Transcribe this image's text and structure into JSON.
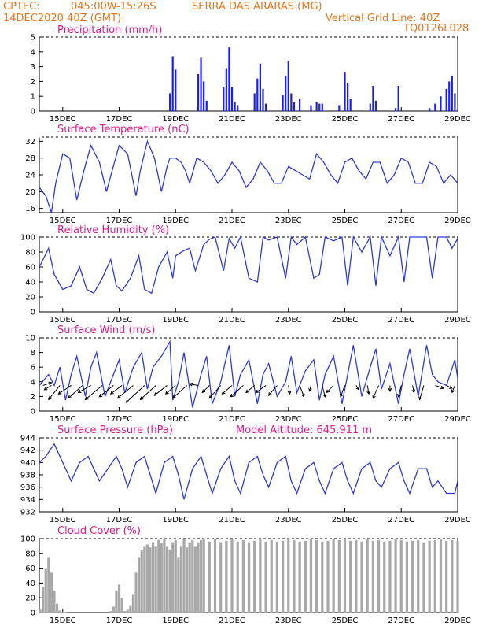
{
  "header": {
    "line1_left": "CPTEC:",
    "line1_coords": "045:00W-15:26S",
    "line1_station": "SERRA DAS ARARAS (MG)",
    "line2_left": "14DEC2020 40Z (GMT)",
    "line2_right": "Vertical Grid Line: 40Z",
    "line3_right": "TQ0126L028"
  },
  "colors": {
    "header": "#e8751a",
    "title": "#e0198b",
    "line": "#2b3ae0",
    "bar": "#1a1ff0",
    "cloud": "#a8a8a8",
    "arrow": "#000000"
  },
  "x_axis": {
    "ticks": [
      "15DEC",
      "17DEC",
      "19DEC",
      "21DEC",
      "23DEC",
      "25DEC",
      "27DEC",
      "29DEC"
    ],
    "range_days": [
      14.17,
      29.0
    ]
  },
  "chart_data": [
    {
      "type": "bar",
      "id": "precip",
      "title": "Precipitation (mm/h)",
      "ylim": [
        0,
        5
      ],
      "yticks": [
        "0",
        "1",
        "2",
        "3",
        "4",
        "5"
      ],
      "x": [
        18.8,
        18.9,
        19.0,
        19.8,
        19.9,
        20.0,
        20.1,
        20.7,
        20.8,
        20.9,
        21.0,
        21.1,
        21.2,
        21.8,
        21.9,
        22.0,
        22.1,
        22.2,
        22.8,
        22.9,
        23.0,
        23.1,
        23.2,
        23.4,
        23.8,
        24.0,
        24.1,
        24.2,
        24.8,
        25.0,
        25.1,
        25.2,
        25.9,
        26.0,
        26.1,
        26.8,
        26.9,
        28.0,
        28.2,
        28.4,
        28.6,
        28.7,
        28.8,
        28.9
      ],
      "values": [
        1.2,
        3.7,
        2.8,
        2.5,
        3.6,
        2.0,
        0.7,
        1.6,
        2.9,
        4.3,
        1.6,
        0.6,
        0.4,
        1.2,
        2.2,
        3.2,
        1.5,
        0.5,
        1.1,
        2.4,
        3.4,
        1.2,
        0.6,
        0.8,
        0.4,
        0.6,
        0.5,
        0.5,
        0.4,
        2.6,
        1.9,
        0.8,
        0.5,
        1.7,
        0.7,
        0.2,
        1.7,
        0.2,
        0.5,
        1.0,
        1.5,
        2.0,
        2.4,
        1.2
      ]
    },
    {
      "type": "line",
      "id": "temp",
      "title": "Surface Temperature (nC)",
      "ylim": [
        15,
        33
      ],
      "yticks": [
        "16",
        "20",
        "24",
        "28",
        "32"
      ],
      "x": [
        14.17,
        14.4,
        14.6,
        14.75,
        15.0,
        15.25,
        15.5,
        15.75,
        16.0,
        16.3,
        16.55,
        16.75,
        17.0,
        17.3,
        17.6,
        17.75,
        18.0,
        18.25,
        18.5,
        18.7,
        18.8,
        19.0,
        19.2,
        19.35,
        19.5,
        19.75,
        20.0,
        20.25,
        20.5,
        20.75,
        21.0,
        21.25,
        21.5,
        21.75,
        22.0,
        22.25,
        22.5,
        22.75,
        23.0,
        23.25,
        23.5,
        23.75,
        24.0,
        24.25,
        24.5,
        24.75,
        25.0,
        25.25,
        25.5,
        25.75,
        26.0,
        26.25,
        26.5,
        26.75,
        27.0,
        27.25,
        27.5,
        27.75,
        28.0,
        28.25,
        28.5,
        28.75,
        29.0
      ],
      "values": [
        21,
        19,
        15,
        22,
        29,
        28,
        18,
        25,
        31,
        27,
        20,
        25,
        31,
        29,
        19,
        25,
        32,
        28,
        20,
        26,
        28,
        28,
        27,
        25,
        22,
        28,
        27,
        25,
        22,
        24,
        27,
        25,
        21,
        23,
        27,
        25,
        22,
        22,
        26,
        25,
        24,
        23,
        29,
        27,
        24,
        22,
        27,
        28,
        25,
        23,
        27,
        27,
        22,
        24,
        28,
        27,
        22,
        22,
        27,
        26,
        22,
        24,
        22
      ]
    },
    {
      "type": "line",
      "id": "rh",
      "title": "Relative Humidity (%)",
      "ylim": [
        0,
        100
      ],
      "yticks": [
        "0",
        "20",
        "40",
        "60",
        "80",
        "100"
      ],
      "x": [
        14.17,
        14.5,
        14.7,
        15.0,
        15.3,
        15.6,
        15.85,
        16.1,
        16.4,
        16.7,
        16.9,
        17.1,
        17.4,
        17.7,
        17.9,
        18.15,
        18.4,
        18.7,
        18.9,
        19.0,
        19.3,
        19.5,
        19.7,
        20.0,
        20.2,
        20.4,
        20.7,
        20.9,
        21.1,
        21.3,
        21.6,
        21.9,
        22.1,
        22.3,
        22.6,
        22.9,
        23.1,
        23.3,
        23.6,
        23.9,
        24.1,
        24.3,
        24.6,
        24.9,
        25.1,
        25.3,
        25.6,
        25.9,
        26.1,
        26.3,
        26.6,
        26.9,
        27.1,
        27.3,
        27.6,
        27.9,
        28.1,
        28.3,
        28.6,
        28.8,
        29.0
      ],
      "values": [
        60,
        85,
        50,
        30,
        35,
        60,
        30,
        25,
        45,
        70,
        35,
        28,
        45,
        75,
        30,
        25,
        60,
        80,
        45,
        75,
        82,
        85,
        55,
        90,
        97,
        100,
        55,
        98,
        85,
        100,
        45,
        40,
        100,
        96,
        100,
        45,
        100,
        90,
        100,
        45,
        50,
        100,
        95,
        100,
        35,
        100,
        80,
        100,
        35,
        100,
        75,
        100,
        40,
        100,
        100,
        100,
        45,
        100,
        100,
        85,
        98
      ]
    },
    {
      "type": "line",
      "id": "wind",
      "title": "Surface Wind (m/s)",
      "ylim": [
        0,
        10
      ],
      "yticks": [
        "0",
        "2",
        "4",
        "6",
        "8",
        "10"
      ],
      "x": [
        14.17,
        14.5,
        14.7,
        14.9,
        15.1,
        15.3,
        15.5,
        15.8,
        16.0,
        16.2,
        16.5,
        16.8,
        17.0,
        17.2,
        17.5,
        17.8,
        18.0,
        18.2,
        18.5,
        18.8,
        18.9,
        19.1,
        19.3,
        19.6,
        19.9,
        20.1,
        20.3,
        20.6,
        20.9,
        21.1,
        21.3,
        21.6,
        21.9,
        22.1,
        22.3,
        22.6,
        22.9,
        23.1,
        23.3,
        23.6,
        23.9,
        24.1,
        24.3,
        24.6,
        24.9,
        25.1,
        25.3,
        25.6,
        25.9,
        26.1,
        26.3,
        26.6,
        26.9,
        27.1,
        27.3,
        27.6,
        27.9,
        28.1,
        28.3,
        28.6,
        28.9,
        29.0
      ],
      "values": [
        3.5,
        5,
        3.5,
        6,
        1.5,
        5,
        7.5,
        2,
        6,
        8,
        2,
        5,
        7,
        2.5,
        6,
        8,
        3,
        6,
        7.5,
        9.5,
        1.5,
        4,
        8,
        0.5,
        5,
        7.5,
        1,
        4,
        9,
        2,
        5,
        7,
        1,
        5,
        6.5,
        2,
        4,
        7.5,
        2.5,
        5.5,
        7,
        1.5,
        5,
        7.5,
        1,
        5,
        9,
        2,
        6,
        8.5,
        3,
        6.5,
        1,
        5,
        8.5,
        2,
        9,
        5,
        4,
        3.5,
        7,
        4.5
      ],
      "vectors_x": [
        14.3,
        14.6,
        14.9,
        15.3,
        15.7,
        16.0,
        16.4,
        16.8,
        17.1,
        17.5,
        17.9,
        18.3,
        18.7,
        19.0,
        19.4,
        19.8,
        20.2,
        20.6,
        21.0,
        21.4,
        21.8,
        22.2,
        22.6,
        23.0,
        23.4,
        23.8,
        24.2,
        24.6,
        25.0,
        25.4,
        25.8,
        26.2,
        26.6,
        27.0,
        27.4,
        27.8,
        28.2,
        28.6,
        28.9
      ],
      "vectors_u": [
        0.6,
        -0.5,
        -0.8,
        -0.9,
        -1.0,
        -0.9,
        -1.2,
        -1.0,
        -0.8,
        -1.1,
        -1.3,
        -1.1,
        -0.9,
        -0.7,
        -1.0,
        -0.6,
        -0.5,
        -0.8,
        -0.7,
        -0.9,
        -0.6,
        -0.7,
        -0.6,
        0.1,
        0.3,
        -0.1,
        0.2,
        -0.5,
        -0.3,
        0.2,
        0.1,
        -0.4,
        0.0,
        -0.2,
        0.1,
        -0.3,
        0.6,
        0.4,
        -0.2
      ],
      "vectors_v": [
        0.2,
        -0.3,
        -1.0,
        -0.6,
        -0.9,
        -0.5,
        -1.0,
        -0.8,
        -0.6,
        -0.9,
        -1.2,
        -1.0,
        -0.7,
        -0.6,
        -0.9,
        0.1,
        -0.5,
        -0.9,
        -0.6,
        -0.8,
        -0.5,
        -0.5,
        -0.7,
        -0.6,
        -0.8,
        -0.4,
        -0.8,
        -0.5,
        -0.8,
        -0.3,
        -0.6,
        -0.9,
        -0.4,
        -0.8,
        -0.5,
        -1.0,
        -0.2,
        -0.2,
        -0.5
      ]
    },
    {
      "type": "line",
      "id": "press",
      "title": "Surface Pressure (hPa)",
      "subtitle": "Model Altitude: 645.911 m",
      "ylim": [
        932,
        944
      ],
      "yticks": [
        "932",
        "934",
        "936",
        "938",
        "940",
        "942",
        "944"
      ],
      "x": [
        14.17,
        14.4,
        14.7,
        14.9,
        15.1,
        15.3,
        15.6,
        15.9,
        16.1,
        16.3,
        16.6,
        16.9,
        17.1,
        17.3,
        17.6,
        17.9,
        18.1,
        18.3,
        18.6,
        18.9,
        19.1,
        19.3,
        19.6,
        19.9,
        20.1,
        20.3,
        20.6,
        20.9,
        21.1,
        21.3,
        21.6,
        21.9,
        22.1,
        22.3,
        22.6,
        22.9,
        23.1,
        23.3,
        23.6,
        23.9,
        24.1,
        24.3,
        24.6,
        24.9,
        25.1,
        25.3,
        25.6,
        25.9,
        26.1,
        26.3,
        26.6,
        26.9,
        27.1,
        27.3,
        27.6,
        27.9,
        28.1,
        28.3,
        28.6,
        28.9,
        29.0
      ],
      "values": [
        940,
        941,
        943,
        941,
        939,
        937,
        940,
        941,
        939,
        937,
        939,
        941,
        939,
        936,
        940,
        941,
        938,
        935,
        940,
        941,
        938,
        934,
        939,
        941,
        938,
        935,
        939,
        941,
        937,
        935,
        940,
        941,
        938,
        936,
        940,
        941,
        937,
        935,
        939,
        940,
        937,
        935,
        939,
        940,
        937,
        935,
        939,
        940,
        937,
        936,
        939,
        940,
        937,
        935,
        939,
        939,
        936,
        937,
        935,
        935,
        937
      ]
    },
    {
      "type": "bar",
      "id": "cloud",
      "title": "Cloud Cover (%)",
      "ylim": [
        0,
        100
      ],
      "yticks": [
        "0",
        "20",
        "40",
        "60",
        "80",
        "100"
      ],
      "x": [
        14.2,
        14.3,
        14.4,
        14.5,
        14.6,
        14.7,
        14.8,
        14.9,
        15.0,
        15.1,
        16.7,
        16.8,
        16.9,
        17.0,
        17.1,
        17.2,
        17.3,
        17.4,
        17.5,
        17.6,
        17.7,
        17.8,
        17.9,
        18.0,
        18.1,
        18.2,
        18.3,
        18.4,
        18.5,
        18.6,
        18.7,
        18.8,
        18.9,
        19.0,
        19.1,
        19.2,
        19.3,
        19.4,
        19.5,
        19.6,
        19.7,
        19.8,
        19.9,
        20.0,
        20.2,
        20.4,
        20.6,
        20.8,
        21.0,
        21.2,
        21.4,
        21.6,
        21.8,
        22.0,
        22.2,
        22.4,
        22.6,
        22.8,
        23.0,
        23.2,
        23.4,
        23.6,
        23.8,
        24.0,
        24.2,
        24.4,
        24.6,
        24.8,
        25.0,
        25.2,
        25.4,
        25.6,
        25.8,
        26.0,
        26.2,
        26.4,
        26.6,
        26.8,
        27.0,
        27.2,
        27.4,
        27.6,
        27.8,
        28.0,
        28.2,
        28.4,
        28.6,
        28.8,
        29.0
      ],
      "values": [
        5,
        35,
        60,
        75,
        55,
        30,
        12,
        3,
        1,
        1,
        2,
        8,
        30,
        38,
        20,
        2,
        5,
        10,
        25,
        55,
        75,
        85,
        90,
        92,
        88,
        95,
        90,
        98,
        94,
        99,
        90,
        85,
        95,
        98,
        75,
        90,
        100,
        88,
        95,
        98,
        90,
        95,
        98,
        99,
        96,
        99,
        95,
        97,
        99,
        96,
        98,
        95,
        97,
        99,
        96,
        98,
        96,
        97,
        99,
        98,
        96,
        97,
        99,
        98,
        96,
        97,
        99,
        98,
        99,
        97,
        98,
        96,
        99,
        97,
        98,
        96,
        97,
        99,
        98,
        96,
        97,
        98,
        95,
        97,
        98,
        99,
        97,
        98,
        97
      ]
    }
  ]
}
